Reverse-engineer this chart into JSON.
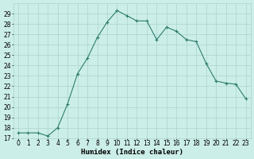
{
  "x": [
    0,
    1,
    2,
    3,
    4,
    5,
    6,
    7,
    8,
    9,
    10,
    11,
    12,
    13,
    14,
    15,
    16,
    17,
    18,
    19,
    20,
    21,
    22,
    23
  ],
  "y": [
    17.5,
    17.5,
    17.5,
    17.2,
    18.0,
    20.3,
    23.2,
    24.7,
    26.7,
    28.2,
    29.3,
    28.8,
    28.3,
    28.3,
    26.5,
    27.7,
    27.3,
    26.5,
    26.3,
    24.2,
    22.5,
    22.3,
    22.2,
    20.8
  ],
  "line_color": "#2e7d6e",
  "marker": "+",
  "marker_size": 3,
  "bg_color": "#cceee8",
  "grid_color": "#aad4cc",
  "xlabel": "Humidex (Indice chaleur)",
  "xlim": [
    -0.5,
    23.5
  ],
  "ylim": [
    17,
    30
  ],
  "yticks": [
    17,
    18,
    19,
    20,
    21,
    22,
    23,
    24,
    25,
    26,
    27,
    28,
    29
  ],
  "xticks": [
    0,
    1,
    2,
    3,
    4,
    5,
    6,
    7,
    8,
    9,
    10,
    11,
    12,
    13,
    14,
    15,
    16,
    17,
    18,
    19,
    20,
    21,
    22,
    23
  ],
  "tick_fontsize": 5.5,
  "xlabel_fontsize": 6.5
}
